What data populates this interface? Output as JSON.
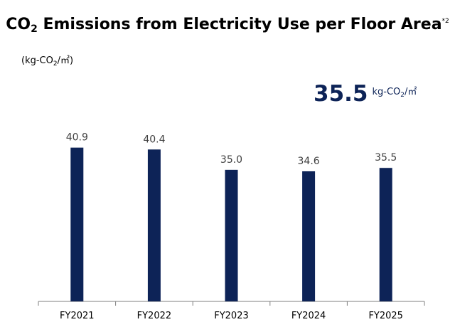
{
  "title": {
    "co": "CO",
    "sub2": "2",
    "rest": " Emissions from Electricity Use per Floor Area",
    "note": "*2"
  },
  "unit": {
    "open": "(kg-CO",
    "sub2": "2",
    "close": "/㎡)"
  },
  "highlight": {
    "value": "35.5",
    "unit_pre": "kg-CO",
    "unit_sub": "2",
    "unit_post": "/㎡"
  },
  "colors": {
    "bar": "#0d2357",
    "highlight": "#0d2357",
    "axis": "#7f7f7f",
    "label": "#404040"
  },
  "chart_data": {
    "type": "bar",
    "categories": [
      "FY2021",
      "FY2022",
      "FY2023",
      "FY2024",
      "FY2025"
    ],
    "values": [
      40.9,
      40.4,
      35.0,
      34.6,
      35.5
    ],
    "value_labels": [
      "40.9",
      "40.4",
      "35.0",
      "34.6",
      "35.5"
    ],
    "ylim": [
      0,
      52
    ],
    "grid": false,
    "legend": "none"
  }
}
